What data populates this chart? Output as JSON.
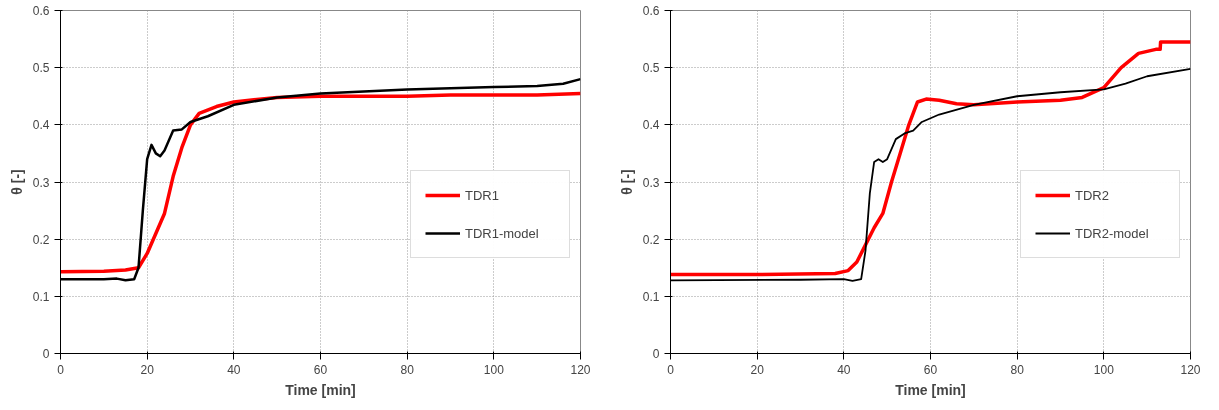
{
  "chart_data": [
    {
      "type": "line",
      "xlabel": "Time [min]",
      "ylabel": "θ [-]",
      "xlim": [
        0,
        120
      ],
      "ylim": [
        0,
        0.6
      ],
      "xticks": [
        0,
        20,
        40,
        60,
        80,
        100,
        120
      ],
      "yticks": [
        0,
        0.1,
        0.2,
        0.3,
        0.4,
        0.5,
        0.6
      ],
      "grid": true,
      "legend": "right",
      "marker": "none",
      "line_style": "solid",
      "series": [
        {
          "name": "TDR1",
          "color": "#ff0000",
          "x": [
            0,
            10,
            15,
            18,
            20,
            22,
            24,
            26,
            28,
            30,
            32,
            36,
            40,
            50,
            60,
            70,
            80,
            90,
            100,
            110,
            120
          ],
          "values": [
            0.143,
            0.144,
            0.146,
            0.15,
            0.175,
            0.21,
            0.245,
            0.31,
            0.36,
            0.4,
            0.42,
            0.432,
            0.44,
            0.448,
            0.45,
            0.45,
            0.45,
            0.452,
            0.452,
            0.452,
            0.455
          ]
        },
        {
          "name": "TDR1-model",
          "color": "#000000",
          "x": [
            0,
            10,
            13,
            15,
            17,
            18,
            19,
            20,
            21,
            22,
            23,
            24,
            26,
            28,
            30,
            34,
            40,
            50,
            60,
            80,
            100,
            110,
            116,
            120
          ],
          "values": [
            0.13,
            0.13,
            0.131,
            0.128,
            0.13,
            0.15,
            0.25,
            0.34,
            0.365,
            0.35,
            0.345,
            0.355,
            0.39,
            0.392,
            0.405,
            0.415,
            0.435,
            0.448,
            0.455,
            0.462,
            0.466,
            0.468,
            0.472,
            0.48
          ]
        }
      ]
    },
    {
      "type": "line",
      "xlabel": "Time [min]",
      "ylabel": "θ [-]",
      "xlim": [
        0,
        120
      ],
      "ylim": [
        0,
        0.6
      ],
      "xticks": [
        0,
        20,
        40,
        60,
        80,
        100,
        120
      ],
      "yticks": [
        0,
        0.1,
        0.2,
        0.3,
        0.4,
        0.5,
        0.6
      ],
      "grid": true,
      "legend": "right",
      "marker": "none",
      "line_style": "solid",
      "series": [
        {
          "name": "TDR2",
          "color": "#ff0000",
          "x": [
            0,
            20,
            38,
            41,
            43,
            45,
            47,
            49,
            51,
            53,
            55,
            57,
            59,
            62,
            66,
            70,
            80,
            90,
            95,
            100,
            104,
            108,
            112,
            113,
            113.1,
            116,
            120
          ],
          "values": [
            0.138,
            0.138,
            0.14,
            0.145,
            0.16,
            0.19,
            0.22,
            0.245,
            0.3,
            0.35,
            0.4,
            0.44,
            0.445,
            0.443,
            0.437,
            0.435,
            0.44,
            0.443,
            0.448,
            0.465,
            0.5,
            0.525,
            0.532,
            0.532,
            0.545,
            0.545,
            0.545
          ]
        },
        {
          "name": "TDR2-model",
          "color": "#000000",
          "x": [
            0,
            30,
            40,
            42,
            44,
            45,
            46,
            47,
            48,
            49,
            50,
            52,
            54,
            56,
            58,
            62,
            70,
            80,
            90,
            100,
            105,
            110,
            120
          ],
          "values": [
            0.128,
            0.129,
            0.13,
            0.127,
            0.13,
            0.18,
            0.28,
            0.335,
            0.34,
            0.335,
            0.34,
            0.375,
            0.385,
            0.39,
            0.405,
            0.418,
            0.435,
            0.45,
            0.457,
            0.462,
            0.472,
            0.485,
            0.498
          ]
        }
      ]
    }
  ]
}
